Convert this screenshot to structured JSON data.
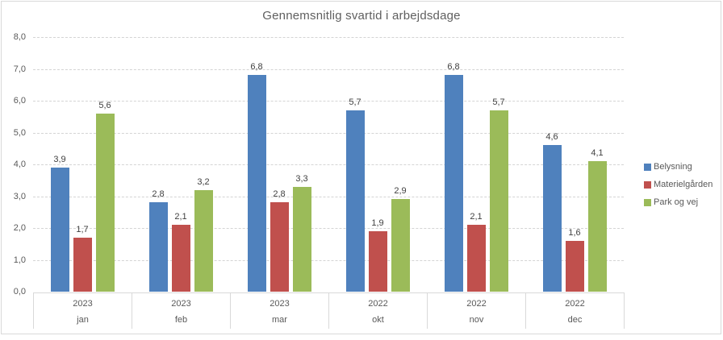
{
  "chart_data": {
    "type": "bar",
    "title": "Gennemsnitlig svartid i arbejdsdage",
    "categories": [
      {
        "year": "2023",
        "month": "jan"
      },
      {
        "year": "2023",
        "month": "feb"
      },
      {
        "year": "2023",
        "month": "mar"
      },
      {
        "year": "2022",
        "month": "okt"
      },
      {
        "year": "2022",
        "month": "nov"
      },
      {
        "year": "2022",
        "month": "dec"
      }
    ],
    "series": [
      {
        "name": "Belysning",
        "color": "#4F81BD",
        "values": [
          3.9,
          2.8,
          6.8,
          5.7,
          6.8,
          4.6
        ]
      },
      {
        "name": "Materielgården",
        "color": "#C0504D",
        "values": [
          1.7,
          2.1,
          2.8,
          1.9,
          2.1,
          1.6
        ]
      },
      {
        "name": "Park og vej",
        "color": "#9BBB59",
        "values": [
          5.6,
          3.2,
          3.3,
          2.9,
          5.7,
          4.1
        ]
      }
    ],
    "data_labels": [
      [
        "3,9",
        "2,8",
        "6,8",
        "5,7",
        "6,8",
        "4,6"
      ],
      [
        "1,7",
        "2,1",
        "2,8",
        "1,9",
        "2,1",
        "1,6"
      ],
      [
        "5,6",
        "3,2",
        "3,3",
        "2,9",
        "5,7",
        "4,1"
      ]
    ],
    "y_axis": {
      "min": 0,
      "max": 8,
      "step": 1,
      "tick_labels": [
        "0,0",
        "1,0",
        "2,0",
        "3,0",
        "4,0",
        "5,0",
        "6,0",
        "7,0",
        "8,0"
      ]
    },
    "legend_position": "right",
    "grid": true,
    "colors": {
      "grid_line": "#d4d4d4",
      "axis_border": "#d9d9d9",
      "title_text": "#5f5f5f",
      "axis_text": "#595959",
      "data_label_text": "#404040"
    }
  }
}
